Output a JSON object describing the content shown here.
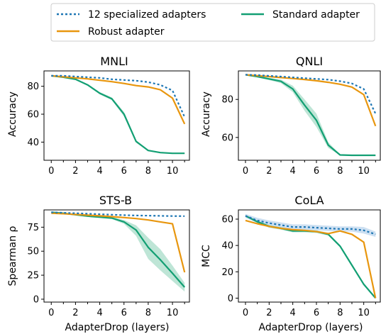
{
  "colors": {
    "specialized": "#1f77b4",
    "robust": "#e8960e",
    "standard": "#129f73",
    "standard_band": "#a8dcc8",
    "specialized_band": "#bcd6ee"
  },
  "legend": {
    "items": [
      {
        "label": "12 specialized adapters",
        "style": "dotted",
        "color_key": "specialized"
      },
      {
        "label": "Standard adapter",
        "style": "solid",
        "color_key": "standard"
      },
      {
        "label": "Robust adapter",
        "style": "solid",
        "color_key": "robust"
      }
    ]
  },
  "chart_data": [
    {
      "type": "line",
      "title": "MNLI",
      "xlabel": "",
      "ylabel": "Accuracy",
      "xlim": [
        -0.6,
        11.4
      ],
      "ylim": [
        27,
        91
      ],
      "xticks": [
        0,
        2,
        4,
        6,
        8,
        10
      ],
      "xminor": [
        1,
        3,
        5,
        7,
        9,
        11
      ],
      "yticks": [
        40,
        60,
        80
      ],
      "x": [
        0,
        1,
        2,
        3,
        4,
        5,
        6,
        7,
        8,
        9,
        10,
        11
      ],
      "series": [
        {
          "name": "12 specialized adapters",
          "color_key": "specialized",
          "style": "dotted",
          "values": [
            87.5,
            87.5,
            87.0,
            86.5,
            86.0,
            85.0,
            84.5,
            84.0,
            83.0,
            81.0,
            77.0,
            58.0
          ]
        },
        {
          "name": "Robust adapter",
          "color_key": "robust",
          "style": "solid",
          "values": [
            87.5,
            86.8,
            86.0,
            85.3,
            84.3,
            83.3,
            82.0,
            80.5,
            79.5,
            77.5,
            71.5,
            53.0
          ]
        },
        {
          "name": "Standard adapter",
          "color_key": "standard",
          "style": "solid",
          "values": [
            87.5,
            86.5,
            85.0,
            81.0,
            75.0,
            71.0,
            60.0,
            40.5,
            34.0,
            32.5,
            32.0,
            32.0
          ],
          "band_lower": [
            87.3,
            86.2,
            84.6,
            80.4,
            74.2,
            70.0,
            58.4,
            39.6,
            33.6,
            32.2,
            31.8,
            31.8
          ],
          "band_upper": [
            87.7,
            86.8,
            85.4,
            81.6,
            75.8,
            72.0,
            61.6,
            41.4,
            34.4,
            32.8,
            32.2,
            32.2
          ]
        }
      ]
    },
    {
      "type": "line",
      "title": "QNLI",
      "xlabel": "",
      "ylabel": "Accuracy",
      "xlim": [
        -0.6,
        11.4
      ],
      "ylim": [
        48,
        95
      ],
      "xticks": [
        0,
        2,
        4,
        6,
        8,
        10
      ],
      "xminor": [
        1,
        3,
        5,
        7,
        9,
        11
      ],
      "yticks": [
        60,
        80
      ],
      "x": [
        0,
        1,
        2,
        3,
        4,
        5,
        6,
        7,
        8,
        9,
        10,
        11
      ],
      "series": [
        {
          "name": "12 specialized adapters",
          "color_key": "specialized",
          "style": "dotted",
          "values": [
            93.0,
            92.8,
            92.4,
            92.0,
            91.6,
            91.2,
            90.8,
            90.4,
            89.6,
            88.4,
            85.5,
            72.5
          ]
        },
        {
          "name": "Robust adapter",
          "color_key": "robust",
          "style": "solid",
          "values": [
            93.0,
            92.5,
            92.0,
            91.5,
            91.0,
            90.5,
            89.8,
            89.0,
            88.0,
            86.5,
            82.5,
            66.0
          ]
        },
        {
          "name": "Standard adapter",
          "color_key": "standard",
          "style": "solid",
          "values": [
            93.0,
            92.0,
            90.8,
            89.5,
            85.5,
            77.0,
            69.0,
            56.0,
            50.8,
            50.6,
            50.6,
            50.6
          ],
          "band_lower": [
            92.8,
            91.6,
            90.2,
            88.6,
            83.8,
            74.0,
            65.5,
            54.5,
            50.6,
            50.5,
            50.5,
            50.5
          ],
          "band_upper": [
            93.2,
            92.4,
            91.4,
            90.4,
            87.2,
            80.0,
            72.5,
            57.5,
            51.0,
            50.7,
            50.7,
            50.7
          ]
        }
      ]
    },
    {
      "type": "line",
      "title": "STS-B",
      "xlabel": "AdapterDrop (layers)",
      "ylabel": "Spearman ρ",
      "xlim": [
        -0.6,
        11.4
      ],
      "ylim": [
        -3,
        93
      ],
      "xticks": [
        0,
        2,
        4,
        6,
        8,
        10
      ],
      "xminor": [
        1,
        3,
        5,
        7,
        9,
        11
      ],
      "yticks": [
        0,
        25,
        50,
        75
      ],
      "x": [
        0,
        1,
        2,
        3,
        4,
        5,
        6,
        7,
        8,
        9,
        10,
        11
      ],
      "series": [
        {
          "name": "12 specialized adapters",
          "color_key": "specialized",
          "style": "dotted",
          "values": [
            90.5,
            90.0,
            89.5,
            89.0,
            88.5,
            88.0,
            87.5,
            87.2,
            87.0,
            86.8,
            86.6,
            86.5
          ]
        },
        {
          "name": "Robust adapter",
          "color_key": "robust",
          "style": "solid",
          "values": [
            89.5,
            89.0,
            88.3,
            87.5,
            86.8,
            86.0,
            85.0,
            84.0,
            82.5,
            80.5,
            78.5,
            28.0
          ]
        },
        {
          "name": "Standard adapter",
          "color_key": "standard",
          "style": "solid",
          "values": [
            90.5,
            89.5,
            88.0,
            86.5,
            85.5,
            84.5,
            80.5,
            72.0,
            54.0,
            41.0,
            27.0,
            12.5
          ],
          "band_lower": [
            90.2,
            89.1,
            87.4,
            85.8,
            84.6,
            83.4,
            78.5,
            66.0,
            42.0,
            30.0,
            19.0,
            8.0
          ],
          "band_upper": [
            90.8,
            89.9,
            88.6,
            87.2,
            86.4,
            85.6,
            82.5,
            77.0,
            64.0,
            52.0,
            35.0,
            17.0
          ]
        }
      ]
    },
    {
      "type": "line",
      "title": "CoLA",
      "xlabel": "AdapterDrop (layers)",
      "ylabel": "MCC",
      "xlim": [
        -0.6,
        11.4
      ],
      "ylim": [
        -3,
        67
      ],
      "xticks": [
        0,
        2,
        4,
        6,
        8,
        10
      ],
      "xminor": [
        1,
        3,
        5,
        7,
        9,
        11
      ],
      "yticks": [
        0,
        20,
        40,
        60
      ],
      "x": [
        0,
        1,
        2,
        3,
        4,
        5,
        6,
        7,
        8,
        9,
        10,
        11
      ],
      "series": [
        {
          "name": "12 specialized adapters",
          "color_key": "specialized",
          "style": "dotted",
          "values": [
            62.5,
            59.0,
            57.0,
            55.5,
            54.0,
            54.0,
            53.5,
            53.0,
            52.5,
            52.5,
            51.5,
            48.5
          ],
          "band_lower": [
            61.0,
            57.0,
            55.0,
            53.5,
            52.0,
            52.0,
            51.5,
            51.0,
            50.5,
            50.5,
            49.0,
            46.5
          ],
          "band_upper": [
            64.0,
            61.0,
            59.0,
            57.5,
            56.0,
            56.0,
            55.5,
            55.0,
            54.5,
            54.5,
            54.0,
            50.5
          ]
        },
        {
          "name": "Robust adapter",
          "color_key": "robust",
          "style": "solid",
          "values": [
            59.0,
            56.5,
            54.5,
            53.0,
            52.0,
            51.5,
            50.5,
            49.0,
            51.0,
            48.5,
            42.5,
            0.0
          ]
        },
        {
          "name": "Standard adapter",
          "color_key": "standard",
          "style": "solid",
          "values": [
            62.5,
            58.0,
            54.5,
            53.0,
            51.0,
            51.0,
            50.5,
            48.5,
            39.5,
            25.0,
            10.5,
            0.0
          ],
          "band_lower": [
            62.0,
            57.0,
            53.5,
            52.0,
            50.0,
            50.0,
            49.5,
            47.5,
            38.5,
            24.0,
            9.5,
            0.0
          ],
          "band_upper": [
            63.0,
            59.0,
            55.5,
            54.0,
            52.0,
            52.0,
            51.5,
            49.5,
            40.5,
            26.0,
            11.5,
            0.0
          ]
        }
      ]
    }
  ]
}
